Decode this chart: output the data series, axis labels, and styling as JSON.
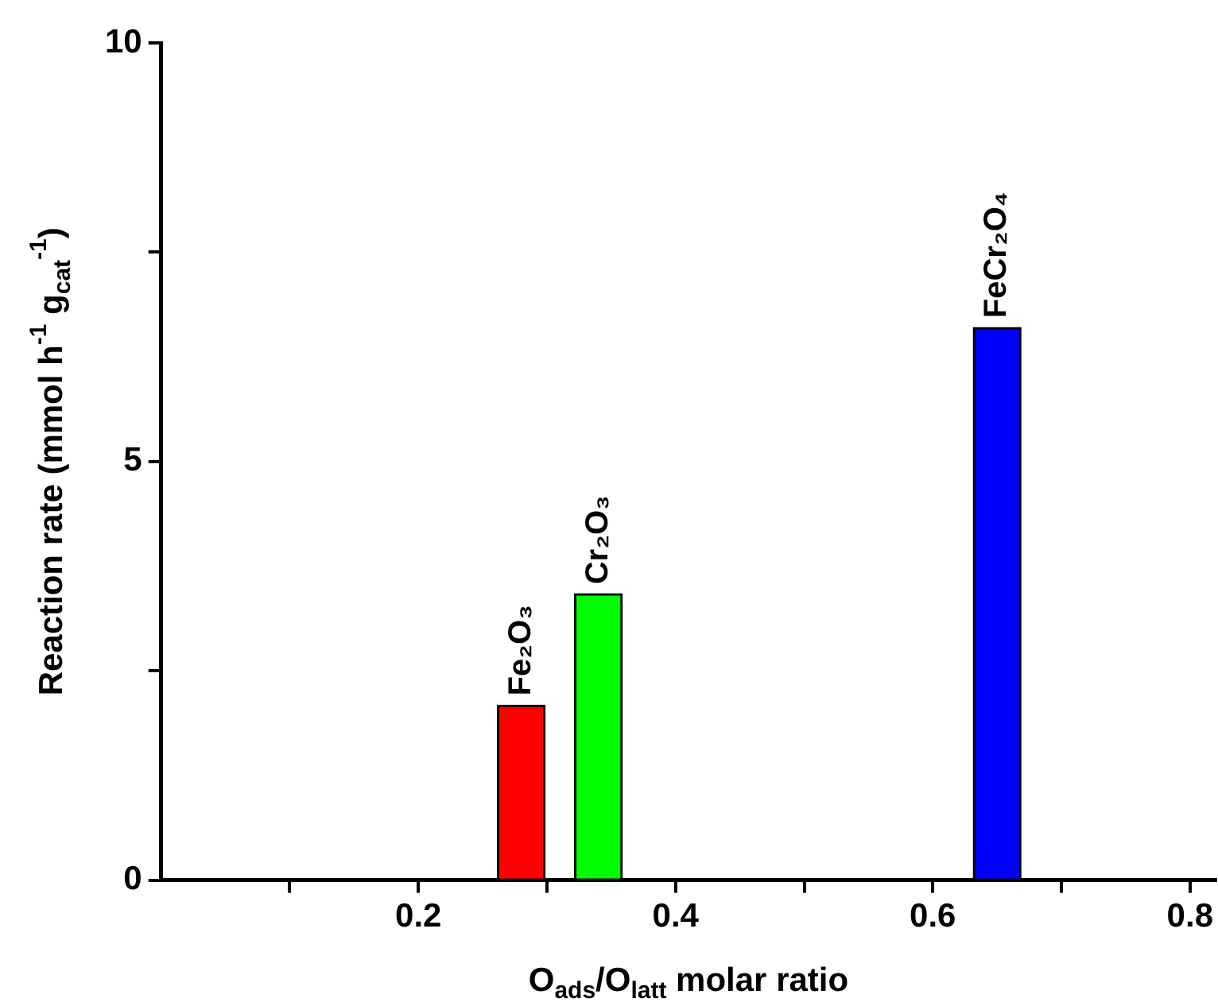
{
  "chart_data": {
    "type": "bar",
    "xlabel": "O$_{ads}$/O$_{latt}$ molar ratio",
    "ylabel": "Reaction rate (mmol h$^{-1}$ g$_{cat}$$^{-1}$)",
    "series": [
      {
        "name": "Fe₂O₃",
        "color": "#ff0000",
        "x": [
          0.28
        ],
        "values": [
          2.09
        ]
      },
      {
        "name": "Cr₂O₃",
        "color": "#00ff00",
        "x": [
          0.34
        ],
        "values": [
          3.42
        ]
      },
      {
        "name": "FeCr₂O₄",
        "color": "#0000ff",
        "x": [
          0.65
        ],
        "values": [
          6.6
        ]
      }
    ],
    "xlim": [
      0,
      0.82
    ],
    "xticks": [
      {
        "value": 0.1,
        "label": null
      },
      0.2,
      {
        "value": 0.3,
        "label": null
      },
      0.4,
      {
        "value": 0.5,
        "label": null
      },
      0.6,
      {
        "value": 0.7,
        "label": null
      },
      0.8
    ],
    "ylim": [
      0,
      10
    ],
    "yticks": [
      0,
      {
        "value": 2.5,
        "label": null
      },
      5,
      {
        "value": 7.5,
        "label": null
      },
      10
    ],
    "legend": false
  }
}
